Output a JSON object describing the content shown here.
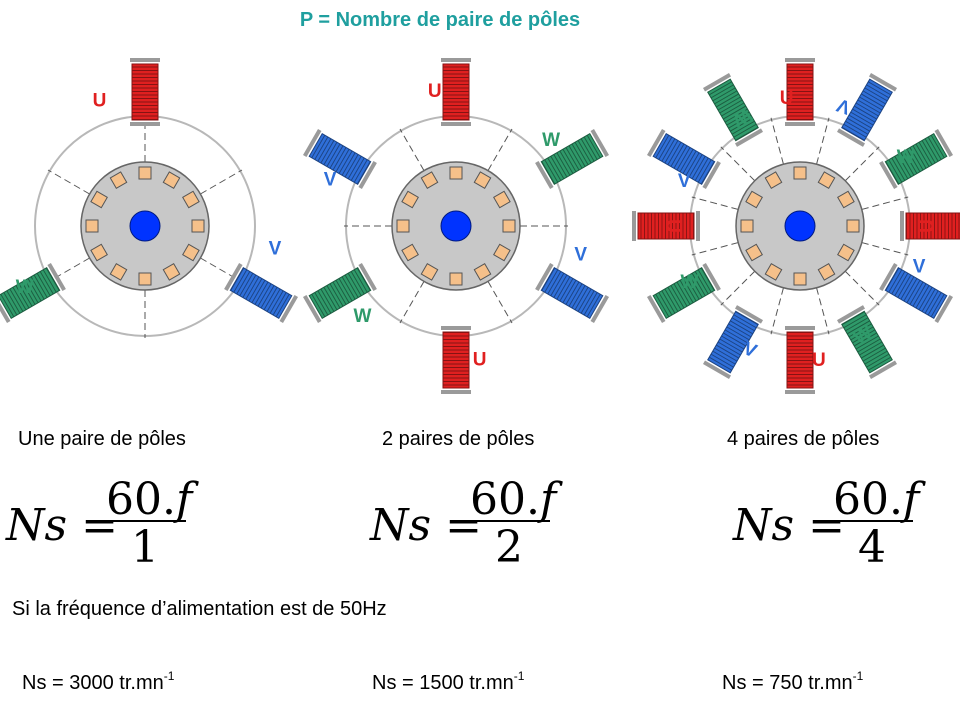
{
  "title": "P = Nombre de paire de pôles",
  "captions": [
    "Une paire de pôles",
    "2 paires de pôles",
    "4 paires de pôles"
  ],
  "formula": {
    "lhs": "Ns =",
    "numerator": "60.",
    "numerator_var": "f",
    "denominators": [
      "1",
      "2",
      "4"
    ]
  },
  "note": "Si la fréquence d’alimentation est de 50Hz",
  "results": [
    {
      "text": "Ns = 3000 tr.mn",
      "exp": "-1"
    },
    {
      "text": "Ns = 1500 tr.mn",
      "exp": "-1"
    },
    {
      "text": "Ns = 750 tr.mn",
      "exp": "-1"
    }
  ],
  "phases": {
    "U": "U",
    "V": "V",
    "W": "W"
  },
  "colors": {
    "title": "#1f9f9f",
    "U": "#e02020",
    "V": "#2f6fd9",
    "W": "#2f9a6a",
    "rotor": "#c8c8c8",
    "slot": "#f5c08a",
    "shaft": "#0033ff"
  }
}
